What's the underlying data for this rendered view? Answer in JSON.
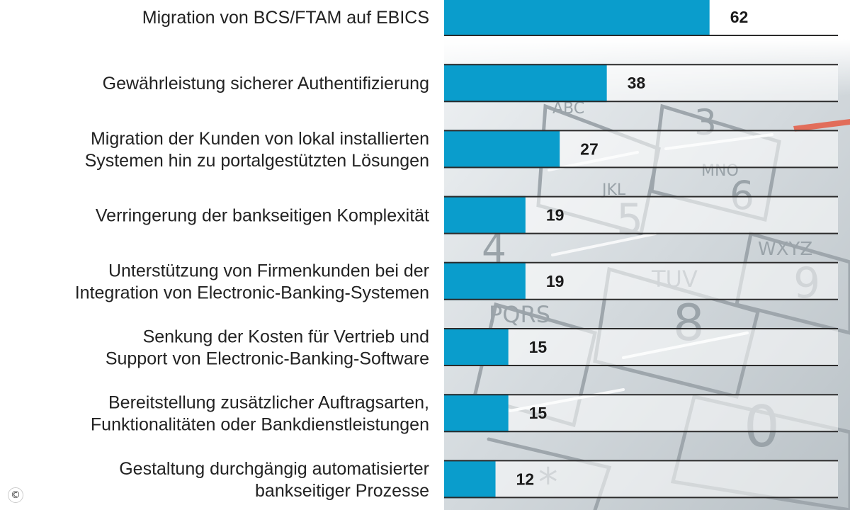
{
  "chart_data": {
    "type": "bar",
    "orientation": "horizontal",
    "categories": [
      [
        "Migration von BCS/FTAM auf EBICS"
      ],
      [
        "Gewährleistung sicherer Authentifizierung"
      ],
      [
        "Migration der Kunden von lokal installierten",
        "Systemen hin zu portalgestützten Lösungen"
      ],
      [
        "Verringerung der bankseitigen Komplexität"
      ],
      [
        "Unterstützung von Firmenkunden bei der",
        "Integration von Electronic-Banking-Systemen"
      ],
      [
        "Senkung der Kosten für Vertrieb und",
        "Support von Electronic-Banking-Software"
      ],
      [
        "Bereitstellung zusätzlicher Auftragsarten,",
        "Funktionalitäten oder Bankdienstleistungen"
      ],
      [
        "Gestaltung durchgängig automatisierter",
        "bankseitiger Prozesse"
      ]
    ],
    "values": [
      62,
      38,
      27,
      19,
      19,
      15,
      15,
      12
    ],
    "title": "",
    "xlabel": "",
    "ylabel": "",
    "xlim": [
      0,
      92
    ],
    "grid": false,
    "legend": "none",
    "bar_color": "#0a9dcc",
    "track_color": "#ffffff",
    "rule_color": "#2b2b2b"
  },
  "copyright_symbol": "©"
}
